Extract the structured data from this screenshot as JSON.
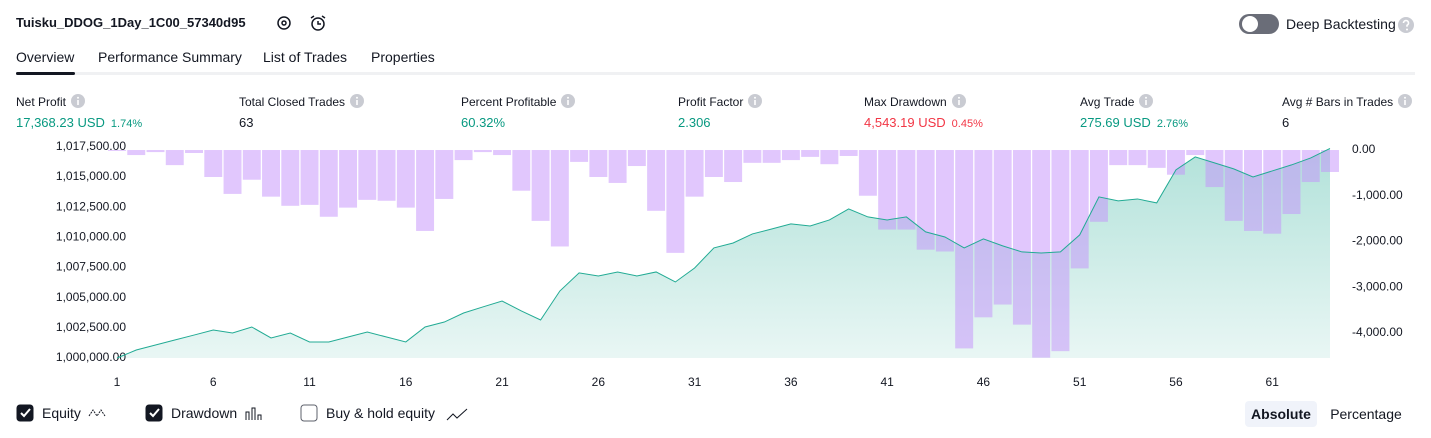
{
  "header": {
    "title": "Tuisku_DDOG_1Day_1C00_57340d95",
    "toggle_label": "Deep Backtesting"
  },
  "tabs": [
    "Overview",
    "Performance Summary",
    "List of Trades",
    "Properties"
  ],
  "metrics": [
    {
      "label": "Net Profit",
      "value": "17,368.23 USD",
      "percent": "1.74%",
      "color": "#089981"
    },
    {
      "label": "Total Closed Trades",
      "value": "63",
      "color": "#131722"
    },
    {
      "label": "Percent Profitable",
      "value": "60.32%",
      "color": "#089981"
    },
    {
      "label": "Profit Factor",
      "value": "2.306",
      "color": "#089981"
    },
    {
      "label": "Max Drawdown",
      "value": "4,543.19 USD",
      "percent": "0.45%",
      "color": "#f23645"
    },
    {
      "label": "Avg Trade",
      "value": "275.69 USD",
      "percent": "2.76%",
      "color": "#089981"
    },
    {
      "label": "Avg # Bars in Trades",
      "value": "6",
      "color": "#131722"
    }
  ],
  "chart_data": {
    "type": "combo",
    "x": [
      1,
      2,
      3,
      4,
      5,
      6,
      7,
      8,
      9,
      10,
      11,
      12,
      13,
      14,
      15,
      16,
      17,
      18,
      19,
      20,
      21,
      22,
      23,
      24,
      25,
      26,
      27,
      28,
      29,
      30,
      31,
      32,
      33,
      34,
      35,
      36,
      37,
      38,
      39,
      40,
      41,
      42,
      43,
      44,
      45,
      46,
      47,
      48,
      49,
      50,
      51,
      52,
      53,
      54,
      55,
      56,
      57,
      58,
      59,
      60,
      61,
      62,
      63,
      64
    ],
    "xlim": [
      1,
      64
    ],
    "xticks": [
      1,
      6,
      11,
      16,
      21,
      26,
      31,
      36,
      41,
      46,
      51,
      56,
      61
    ],
    "ylim": [
      1000000,
      1017650
    ],
    "yticks": [
      {
        "value": 1000000,
        "label": "1,000,000.00"
      },
      {
        "value": 1002500,
        "label": "1,002,500.00"
      },
      {
        "value": 1005000,
        "label": "1,005,000.00"
      },
      {
        "value": 1007500,
        "label": "1,007,500.00"
      },
      {
        "value": 1010000,
        "label": "1,010,000.00"
      },
      {
        "value": 1012500,
        "label": "1,012,500.00"
      },
      {
        "value": 1015000,
        "label": "1,015,000.00"
      },
      {
        "value": 1017500,
        "label": "1,017,500.00"
      }
    ],
    "y2lim": [
      -4550,
      110
    ],
    "y2ticks": [
      {
        "value": 0,
        "label": "0.00"
      },
      {
        "value": -1000,
        "label": "-1,000.00"
      },
      {
        "value": -2000,
        "label": "-2,000.00"
      },
      {
        "value": -3000,
        "label": "-3,000.00"
      },
      {
        "value": -4000,
        "label": "-4,000.00"
      }
    ],
    "grid": false,
    "series": [
      {
        "name": "Equity",
        "type": "area",
        "color": "#22ab94",
        "checked": true,
        "values": [
          1000000,
          1000660,
          1001080,
          1001490,
          1001900,
          1002320,
          1002070,
          1002570,
          1001660,
          1002070,
          1001330,
          1001330,
          1001740,
          1002150,
          1001740,
          1001330,
          1002570,
          1002980,
          1003730,
          1004230,
          1004720,
          1003900,
          1003150,
          1005550,
          1007050,
          1006800,
          1007130,
          1006800,
          1007130,
          1006300,
          1007460,
          1009120,
          1009530,
          1010280,
          1010690,
          1011110,
          1010940,
          1011440,
          1012350,
          1011690,
          1011440,
          1011690,
          1010450,
          1010030,
          1009120,
          1009870,
          1009290,
          1008790,
          1008700,
          1008790,
          1010200,
          1013350,
          1013020,
          1013180,
          1012850,
          1015590,
          1016660,
          1016170,
          1015670,
          1015000,
          1015500,
          1016000,
          1016580,
          1017368
        ]
      },
      {
        "name": "Drawdown",
        "type": "bar",
        "axis": "y2",
        "color": "#c38ffc",
        "checked": true,
        "values": [
          -20,
          -110,
          -45,
          -330,
          -65,
          -590,
          -960,
          -650,
          -1020,
          -1220,
          -1200,
          -1460,
          -1260,
          -1090,
          -1110,
          -1260,
          -1770,
          -1070,
          -220,
          -45,
          -110,
          -890,
          -1550,
          -2110,
          -260,
          -590,
          -720,
          -350,
          -1330,
          -2250,
          -1020,
          -590,
          -700,
          -280,
          -280,
          -220,
          -150,
          -310,
          -130,
          -1000,
          -1740,
          -1740,
          -2180,
          -2220,
          -4340,
          -3660,
          -3380,
          -3820,
          -4543,
          -4400,
          -2590,
          -1570,
          -330,
          -330,
          -390,
          -540,
          -110,
          -810,
          -1550,
          -1770,
          -1830,
          -1400,
          -700,
          -480
        ]
      }
    ],
    "benchmark": {
      "name": "Buy & hold equity",
      "checked": false
    }
  },
  "view_buttons": [
    "Absolute",
    "Percentage"
  ]
}
